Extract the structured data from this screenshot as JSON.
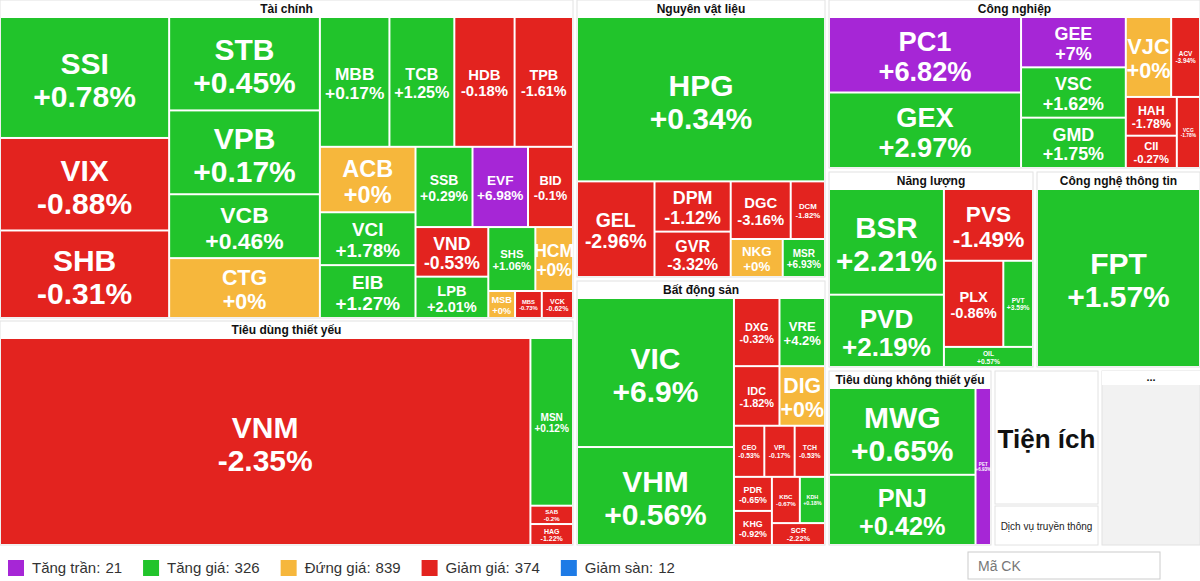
{
  "chart_data": {
    "type": "treemap",
    "legend": "bottom",
    "series": [
      {
        "name": "Tài chính",
        "categories": [
          "SSI",
          "VIX",
          "SHB",
          "STB",
          "VPB",
          "VCB",
          "CTG",
          "MBB",
          "TCB",
          "HDB",
          "TPB",
          "ACB",
          "VCI",
          "EIB",
          "SSB",
          "EVF",
          "BID",
          "VND",
          "LPB",
          "SHS",
          "HCM",
          "MSB",
          "MBS",
          "VCK"
        ],
        "values": [
          0.78,
          -0.88,
          -0.31,
          0.45,
          0.17,
          0.46,
          0,
          0.17,
          1.25,
          -0.18,
          -1.61,
          0,
          1.78,
          1.27,
          0.29,
          6.98,
          -0.1,
          -0.53,
          2.01,
          1.06,
          0,
          0,
          -0.73,
          -0.62
        ],
        "value_labels": [
          "+0.78%",
          "-0.88%",
          "-0.31%",
          "+0.45%",
          "+0.17%",
          "+0.46%",
          "+0%",
          "+0.17%",
          "+1.25%",
          "-0.18%",
          "-1.61%",
          "+0%",
          "+1.78%",
          "+1.27%",
          "+0.29%",
          "+6.98%",
          "-0.1%",
          "-0.53%",
          "+2.01%",
          "+1.06%",
          "+0%",
          "+0%",
          "-0.73%",
          "-0.62%"
        ],
        "sizes": [
          170,
          130,
          123,
          117,
          105,
          80,
          75,
          75,
          70,
          65,
          63,
          52,
          42,
          42,
          38,
          37,
          30,
          30,
          25,
          25,
          20,
          6,
          6,
          7
        ],
        "colors": [
          "#21c42b",
          "#e3231f",
          "#e3231f",
          "#21c42b",
          "#21c42b",
          "#21c42b",
          "#f6b73c",
          "#21c42b",
          "#21c42b",
          "#e3231f",
          "#e3231f",
          "#f6b73c",
          "#21c42b",
          "#21c42b",
          "#21c42b",
          "#a626d6",
          "#e3231f",
          "#e3231f",
          "#21c42b",
          "#21c42b",
          "#f6b73c",
          "#f6b73c",
          "#e3231f",
          "#e3231f"
        ]
      },
      {
        "name": "Tiêu dùng thiết yếu",
        "categories": [
          "VNM",
          "MSN",
          "SAB",
          "HAG"
        ],
        "values": [
          -2.35,
          0.12,
          -0.2,
          -1.22
        ],
        "value_labels": [
          "-2.35%",
          "+0.12%",
          "-0.2%",
          "-1.22%"
        ],
        "sizes": [
          984,
          64,
          7,
          8
        ],
        "colors": [
          "#e3231f",
          "#21c42b",
          "#e3231f",
          "#e3231f"
        ]
      },
      {
        "name": "Nguyên vật liệu",
        "categories": [
          "HPG",
          "GEL",
          "DPM",
          "GVR",
          "DGC",
          "DCM",
          "NKG",
          "MSR"
        ],
        "values": [
          0.34,
          -2.96,
          -1.12,
          -3.32,
          -3.16,
          -1.82,
          0,
          6.93
        ],
        "value_labels": [
          "+0.34%",
          "-2.96%",
          "-1.12%",
          "-3.32%",
          "-3.16%",
          "-1.82%",
          "+0%",
          "+6.93%"
        ],
        "sizes": [
          330,
          60,
          31,
          28,
          28,
          16,
          16,
          13
        ],
        "colors": [
          "#21c42b",
          "#e3231f",
          "#e3231f",
          "#e3231f",
          "#e3231f",
          "#e3231f",
          "#f6b73c",
          "#21c42b"
        ]
      },
      {
        "name": "Bất động sản",
        "categories": [
          "VIC",
          "VHM",
          "DXG",
          "VRE",
          "IDC",
          "DIG",
          "CEO",
          "VPI",
          "TCH",
          "PDR",
          "KHG",
          "KBC",
          "KDH",
          "SCR"
        ],
        "values": [
          6.9,
          0.56,
          -0.32,
          4.2,
          -1.82,
          0,
          -0.53,
          -0.17,
          -0.53,
          -0.65,
          -0.92,
          -0.67,
          0.18,
          -2.22
        ],
        "value_labels": [
          "+6.9%",
          "+0.56%",
          "-0.32%",
          "+4.2%",
          "-1.82%",
          "+0%",
          "-0.53%",
          "-0.17%",
          "-0.53%",
          "-0.65%",
          "-0.92%",
          "-0.67%",
          "+0.18%",
          "-2.22%"
        ],
        "sizes": [
          181,
          119,
          24,
          24,
          21,
          21,
          12,
          12,
          12,
          10,
          10,
          10,
          9,
          9
        ],
        "colors": [
          "#21c42b",
          "#21c42b",
          "#e3231f",
          "#21c42b",
          "#e3231f",
          "#f6b73c",
          "#e3231f",
          "#e3231f",
          "#e3231f",
          "#e3231f",
          "#e3231f",
          "#e3231f",
          "#21c42b",
          "#e3231f"
        ]
      },
      {
        "name": "Công nghiệp",
        "categories": [
          "PC1",
          "GEX",
          "GEE",
          "VSC",
          "GMD",
          "VJC",
          "ACV",
          "HAH",
          "CII",
          "VCG"
        ],
        "values": [
          6.82,
          2.97,
          7,
          1.62,
          1.75,
          0,
          -3.94,
          -1.78,
          -0.27,
          -1.78
        ],
        "value_labels": [
          "+6.82%",
          "+2.97%",
          "+7%",
          "+1.62%",
          "+1.75%",
          "+0%",
          "-3.94%",
          "-1.78%",
          "-0.27%",
          "-1.78%"
        ],
        "sizes": [
          88,
          88,
          32,
          32,
          32,
          22,
          14,
          12,
          10,
          10
        ],
        "colors": [
          "#a626d6",
          "#21c42b",
          "#a626d6",
          "#21c42b",
          "#21c42b",
          "#f6b73c",
          "#e3231f",
          "#e3231f",
          "#e3231f",
          "#e3231f"
        ]
      },
      {
        "name": "Năng lượng",
        "categories": [
          "BSR",
          "PVD",
          "PVS",
          "PLX",
          "PVT",
          "OIL"
        ],
        "values": [
          2.21,
          2.19,
          -1.49,
          -0.86,
          3.59,
          0.57
        ],
        "value_labels": [
          "+2.21%",
          "+2.19%",
          "-1.49%",
          "-0.86%",
          "+3.59%",
          "+0.57%"
        ],
        "sizes": [
          95,
          65,
          50,
          40,
          20,
          14
        ],
        "colors": [
          "#21c42b",
          "#21c42b",
          "#e3231f",
          "#e3231f",
          "#21c42b",
          "#21c42b"
        ]
      },
      {
        "name": "Công nghệ thông tin",
        "categories": [
          "FPT"
        ],
        "values": [
          1.57
        ],
        "value_labels": [
          "+1.57%"
        ],
        "sizes": [
          272
        ],
        "colors": [
          "#21c42b"
        ]
      },
      {
        "name": "Tiêu dùng không thiết yếu",
        "categories": [
          "MWG",
          "PNJ",
          "PET"
        ],
        "values": [
          0.65,
          0.42,
          6.93
        ],
        "value_labels": [
          "+0.65%",
          "+0.42%",
          "+6.93%"
        ],
        "sizes": [
          68,
          55,
          13
        ],
        "colors": [
          "#21c42b",
          "#21c42b",
          "#a626d6"
        ]
      },
      {
        "name": "Tiện ích",
        "categories": [],
        "values": [],
        "value_labels": [],
        "sizes": [],
        "colors": []
      },
      {
        "name": "Dịch vụ truyền thông",
        "categories": [],
        "values": [],
        "value_labels": [],
        "sizes": [],
        "colors": []
      },
      {
        "name": "...",
        "categories": [],
        "values": [],
        "value_labels": [],
        "sizes": [],
        "colors": []
      }
    ],
    "legend_entries": [
      {
        "label": "Tăng trần:",
        "count": 21,
        "color": "#a626d6"
      },
      {
        "label": "Tăng giá:",
        "count": 326,
        "color": "#21c42b"
      },
      {
        "label": "Đứng giá:",
        "count": 839,
        "color": "#f6b73c"
      },
      {
        "label": "Giảm giá:",
        "count": 374,
        "color": "#e3231f"
      },
      {
        "label": "Giảm sàn:",
        "count": 12,
        "color": "#1e7be6"
      }
    ],
    "search_placeholder": "Mã CK"
  }
}
